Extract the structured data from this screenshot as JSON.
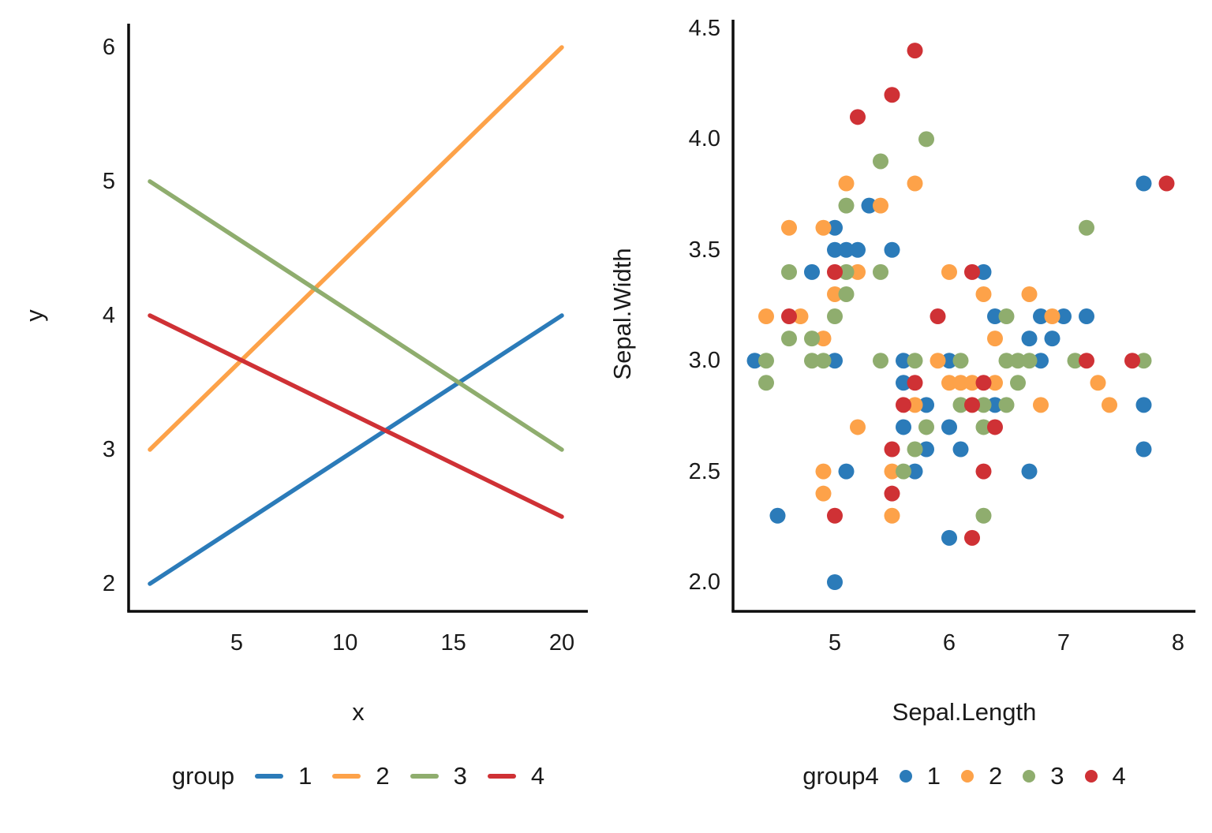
{
  "page": {
    "background": "#ffffff",
    "text_color": "#1a1a1a"
  },
  "chart_data": [
    {
      "type": "line",
      "title": "",
      "xlabel": "x",
      "ylabel": "y",
      "x_ticks": [
        "5",
        "10",
        "15",
        "20"
      ],
      "y_ticks": [
        "2",
        "3",
        "4",
        "5",
        "6"
      ],
      "xlim": [
        1,
        20
      ],
      "ylim": [
        2,
        6
      ],
      "grid": "off",
      "legend": {
        "title": "group",
        "position": "bottom"
      },
      "series": [
        {
          "name": "1",
          "color": "#2b7bb9",
          "points": [
            [
              1,
              2
            ],
            [
              20,
              4
            ]
          ]
        },
        {
          "name": "2",
          "color": "#fda249",
          "points": [
            [
              1,
              3
            ],
            [
              20,
              6
            ]
          ]
        },
        {
          "name": "3",
          "color": "#8fad6e",
          "points": [
            [
              1,
              5
            ],
            [
              20,
              3
            ]
          ]
        },
        {
          "name": "4",
          "color": "#cf3135",
          "points": [
            [
              1,
              4
            ],
            [
              20,
              2.5
            ]
          ]
        }
      ]
    },
    {
      "type": "scatter",
      "title": "",
      "xlabel": "Sepal.Length",
      "ylabel": "Sepal.Width",
      "x_ticks": [
        "5",
        "6",
        "7",
        "8"
      ],
      "y_ticks": [
        "2.0",
        "2.5",
        "3.0",
        "3.5",
        "4.0",
        "4.5"
      ],
      "xlim": [
        4.1,
        8.1
      ],
      "ylim": [
        1.9,
        4.5
      ],
      "grid": "off",
      "legend": {
        "title": "group4",
        "position": "bottom"
      },
      "series": [
        {
          "name": "1",
          "color": "#2b7bb9",
          "points": [
            [
              5.3,
              3.7
            ],
            [
              7.7,
              3.8
            ],
            [
              5.0,
              3.6
            ],
            [
              5.0,
              3.5
            ],
            [
              5.1,
              3.5
            ],
            [
              5.2,
              3.5
            ],
            [
              5.5,
              3.5
            ],
            [
              4.8,
              3.4
            ],
            [
              6.3,
              3.4
            ],
            [
              6.4,
              3.2
            ],
            [
              6.8,
              3.2
            ],
            [
              7.0,
              3.2
            ],
            [
              7.2,
              3.2
            ],
            [
              6.7,
              3.1
            ],
            [
              6.9,
              3.1
            ],
            [
              4.3,
              3.0
            ],
            [
              5.0,
              3.0
            ],
            [
              5.6,
              3.0
            ],
            [
              6.0,
              3.0
            ],
            [
              6.8,
              3.0
            ],
            [
              5.6,
              2.9
            ],
            [
              5.8,
              2.8
            ],
            [
              6.4,
              2.8
            ],
            [
              7.7,
              2.8
            ],
            [
              5.6,
              2.7
            ],
            [
              6.0,
              2.7
            ],
            [
              5.8,
              2.6
            ],
            [
              6.1,
              2.6
            ],
            [
              7.7,
              2.6
            ],
            [
              5.1,
              2.5
            ],
            [
              5.7,
              2.5
            ],
            [
              6.7,
              2.5
            ],
            [
              4.5,
              2.3
            ],
            [
              6.0,
              2.2
            ],
            [
              5.0,
              2.0
            ]
          ]
        },
        {
          "name": "2",
          "color": "#fda249",
          "points": [
            [
              5.1,
              3.8
            ],
            [
              5.7,
              3.8
            ],
            [
              5.4,
              3.7
            ],
            [
              4.6,
              3.6
            ],
            [
              4.9,
              3.6
            ],
            [
              5.2,
              3.4
            ],
            [
              6.0,
              3.4
            ],
            [
              5.0,
              3.3
            ],
            [
              6.3,
              3.3
            ],
            [
              6.7,
              3.3
            ],
            [
              4.4,
              3.2
            ],
            [
              4.7,
              3.2
            ],
            [
              6.9,
              3.2
            ],
            [
              4.9,
              3.1
            ],
            [
              6.4,
              3.1
            ],
            [
              5.9,
              3.0
            ],
            [
              6.0,
              2.9
            ],
            [
              6.1,
              2.9
            ],
            [
              6.2,
              2.9
            ],
            [
              6.4,
              2.9
            ],
            [
              7.3,
              2.9
            ],
            [
              5.7,
              2.8
            ],
            [
              6.8,
              2.8
            ],
            [
              7.4,
              2.8
            ],
            [
              5.2,
              2.7
            ],
            [
              4.9,
              2.5
            ],
            [
              5.5,
              2.5
            ],
            [
              4.9,
              2.4
            ],
            [
              5.5,
              2.3
            ]
          ]
        },
        {
          "name": "3",
          "color": "#8fad6e",
          "points": [
            [
              5.8,
              4.0
            ],
            [
              5.4,
              3.9
            ],
            [
              5.1,
              3.7
            ],
            [
              7.2,
              3.6
            ],
            [
              4.6,
              3.4
            ],
            [
              5.1,
              3.4
            ],
            [
              5.4,
              3.4
            ],
            [
              5.1,
              3.3
            ],
            [
              5.0,
              3.2
            ],
            [
              6.5,
              3.2
            ],
            [
              4.6,
              3.1
            ],
            [
              4.8,
              3.1
            ],
            [
              4.4,
              3.0
            ],
            [
              4.8,
              3.0
            ],
            [
              4.9,
              3.0
            ],
            [
              5.4,
              3.0
            ],
            [
              5.7,
              3.0
            ],
            [
              6.1,
              3.0
            ],
            [
              6.5,
              3.0
            ],
            [
              6.6,
              3.0
            ],
            [
              6.7,
              3.0
            ],
            [
              7.1,
              3.0
            ],
            [
              7.7,
              3.0
            ],
            [
              4.4,
              2.9
            ],
            [
              6.6,
              2.9
            ],
            [
              6.1,
              2.8
            ],
            [
              6.3,
              2.8
            ],
            [
              6.5,
              2.8
            ],
            [
              5.8,
              2.7
            ],
            [
              6.3,
              2.7
            ],
            [
              5.7,
              2.6
            ],
            [
              5.6,
              2.5
            ],
            [
              6.3,
              2.3
            ]
          ]
        },
        {
          "name": "4",
          "color": "#cf3135",
          "points": [
            [
              5.7,
              4.4
            ],
            [
              5.5,
              4.2
            ],
            [
              5.2,
              4.1
            ],
            [
              7.9,
              3.8
            ],
            [
              5.0,
              3.4
            ],
            [
              6.2,
              3.4
            ],
            [
              4.6,
              3.2
            ],
            [
              5.9,
              3.2
            ],
            [
              7.2,
              3.0
            ],
            [
              7.6,
              3.0
            ],
            [
              5.7,
              2.9
            ],
            [
              6.3,
              2.9
            ],
            [
              5.6,
              2.8
            ],
            [
              6.2,
              2.8
            ],
            [
              6.4,
              2.7
            ],
            [
              5.5,
              2.6
            ],
            [
              6.3,
              2.5
            ],
            [
              5.5,
              2.4
            ],
            [
              5.0,
              2.3
            ],
            [
              6.2,
              2.2
            ]
          ]
        }
      ]
    }
  ]
}
